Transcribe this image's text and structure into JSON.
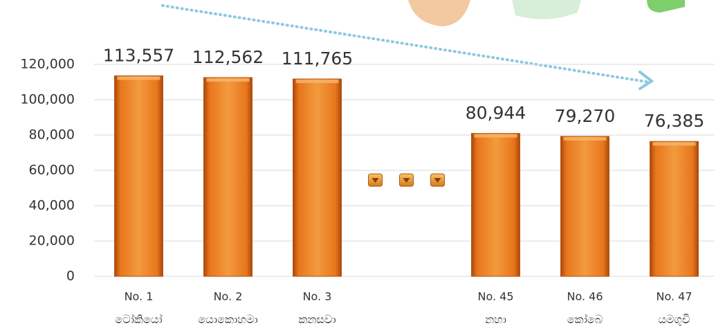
{
  "chart_data": {
    "type": "bar",
    "categories": [
      "No. 1",
      "No. 2",
      "No. 3",
      null,
      "No. 45",
      "No. 46",
      "No. 47"
    ],
    "category_names": [
      "ටෝකියෝ",
      "යොකොහමා",
      "කනසවා",
      null,
      "නහා",
      "කෝබෙ",
      "යමගුචි"
    ],
    "values": [
      113557,
      112562,
      111765,
      null,
      80944,
      79270,
      76385
    ],
    "value_labels": [
      "113,557",
      "112,562",
      "111,765",
      null,
      "80,944",
      "79,270",
      "76,385"
    ],
    "color": "#e8761c",
    "ylim": [
      0,
      120000
    ],
    "yticks": [
      0,
      {
        "value": 20000,
        "label": "20,000"
      },
      {
        "value": 40000,
        "label": "40,000"
      },
      {
        "value": 60000,
        "label": "60,000"
      },
      {
        "value": 80000,
        "label": "80,000"
      },
      {
        "value": 100000,
        "label": "100,000"
      },
      {
        "value": 120000,
        "label": "120,000"
      }
    ],
    "grid": true
  }
}
